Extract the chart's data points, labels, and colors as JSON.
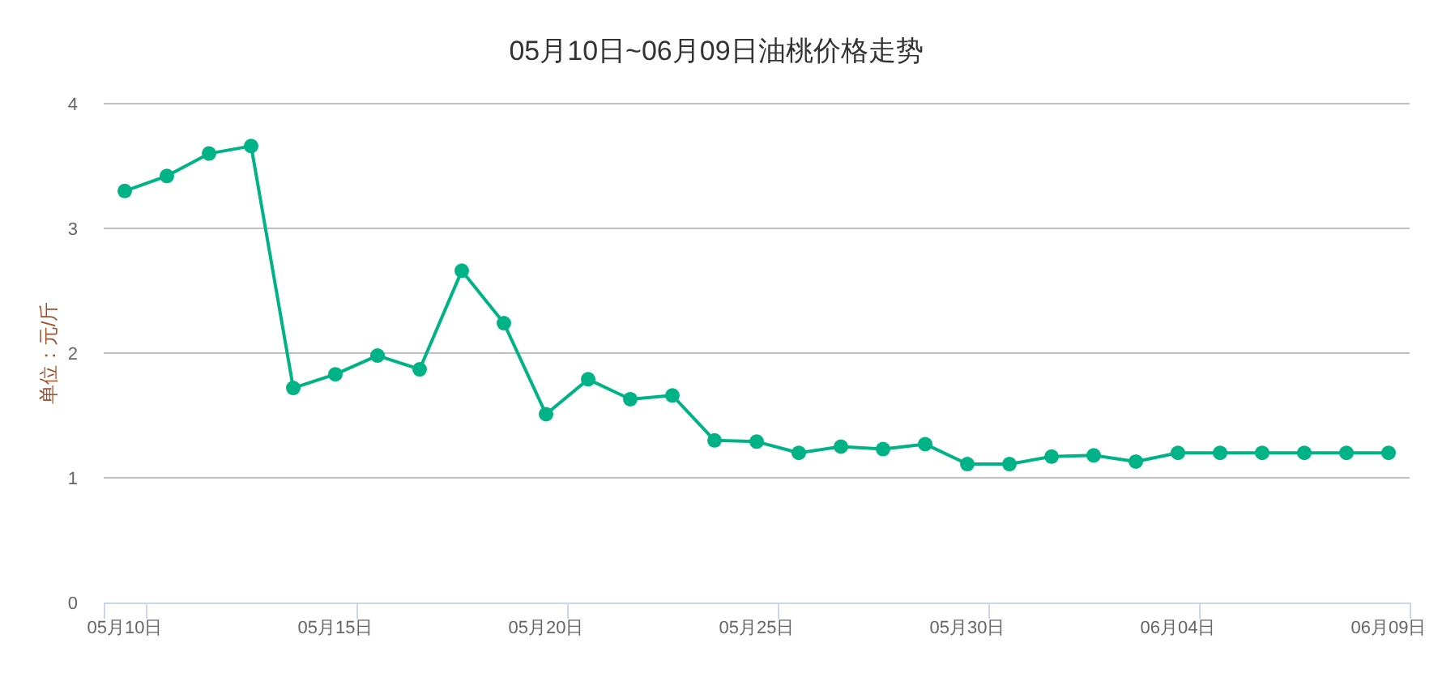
{
  "chart_data": {
    "type": "line",
    "title": "05月10日~06月09日油桃价格走势",
    "ylabel": "单位：元/斤",
    "categories": [
      "05月10日",
      null,
      null,
      null,
      null,
      "05月15日",
      null,
      null,
      null,
      null,
      "05月20日",
      null,
      null,
      null,
      null,
      "05月25日",
      null,
      null,
      null,
      null,
      "05月30日",
      null,
      null,
      null,
      null,
      "06月04日",
      null,
      null,
      null,
      null,
      "06月09日"
    ],
    "series": [
      {
        "color": "#00b386",
        "values": [
          3.3,
          3.42,
          3.6,
          3.66,
          1.72,
          1.83,
          1.98,
          1.87,
          2.66,
          2.24,
          1.51,
          1.79,
          1.63,
          1.66,
          1.3,
          1.29,
          1.2,
          1.25,
          1.23,
          1.27,
          1.11,
          1.11,
          1.17,
          1.18,
          1.13,
          1.2,
          1.2,
          1.2,
          1.2,
          1.2,
          1.2
        ]
      }
    ],
    "ylim": [
      0,
      4
    ],
    "yticks": [
      0,
      1,
      2,
      3,
      4
    ],
    "grid": "y",
    "marker": "circle",
    "line_style": "solid"
  }
}
